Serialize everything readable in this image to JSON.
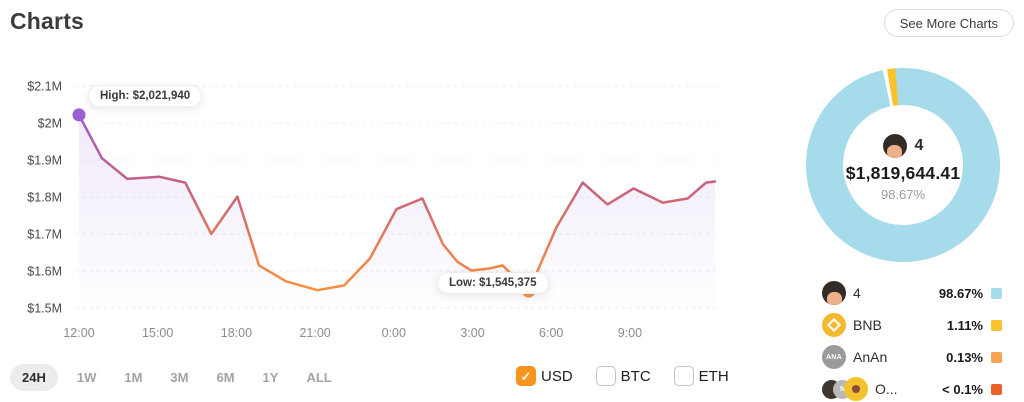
{
  "header": {
    "title": "Charts",
    "see_more_label": "See More Charts"
  },
  "tooltips": {
    "high": "High: $2,021,940",
    "low": "Low: $1,545,375"
  },
  "ranges": [
    {
      "label": "24H",
      "active": true
    },
    {
      "label": "1W",
      "active": false
    },
    {
      "label": "1M",
      "active": false
    },
    {
      "label": "3M",
      "active": false
    },
    {
      "label": "6M",
      "active": false
    },
    {
      "label": "1Y",
      "active": false
    },
    {
      "label": "ALL",
      "active": false
    }
  ],
  "currencies": [
    {
      "label": "USD",
      "checked": true
    },
    {
      "label": "BTC",
      "checked": false
    },
    {
      "label": "ETH",
      "checked": false
    }
  ],
  "donut_center": {
    "count": "4",
    "amount": "$1,819,644.41",
    "percent": "98.67%"
  },
  "legend": {
    "rows": [
      {
        "icon": "avatar-icon",
        "label": "4",
        "value": "98.67%",
        "chip_color": "#A3DCED"
      },
      {
        "icon": "bnb-icon",
        "label": "BNB",
        "value": "1.11%",
        "chip_color": "#F9C32D"
      },
      {
        "icon": "ana-icon",
        "label": "AnAn",
        "value": "0.13%",
        "chip_color": "#F6A355"
      },
      {
        "icon": "coins-icon",
        "label": "O...",
        "value": "< 0.1%",
        "chip_color": "#E8622A"
      }
    ]
  },
  "chart_data": [
    {
      "type": "line",
      "x_ticks": [
        "12:00",
        "15:00",
        "18:00",
        "21:00",
        "0:00",
        "3:00",
        "6:00",
        "9:00"
      ],
      "y_ticks": [
        "$2.1M",
        "$2M",
        "$1.9M",
        "$1.8M",
        "$1.7M",
        "$1.6M",
        "$1.5M"
      ],
      "y_range": [
        1500000,
        2100000
      ],
      "grid": true,
      "high": {
        "value": 2021940,
        "label": "High: $2,021,940",
        "dot_color": "#9B5FD6"
      },
      "low": {
        "value": 1545375,
        "label": "Low: $1,545,375",
        "dot_color": "#F8923C"
      },
      "line_gradient": [
        "#9A5CD8",
        "#C7617D",
        "#EF7F4E",
        "#F8973C"
      ],
      "area_color": "#9460D6",
      "points": [
        [
          0.0,
          2021940
        ],
        [
          0.036,
          1905000
        ],
        [
          0.076,
          1849000
        ],
        [
          0.126,
          1855000
        ],
        [
          0.167,
          1839000
        ],
        [
          0.208,
          1700000
        ],
        [
          0.249,
          1801000
        ],
        [
          0.283,
          1615000
        ],
        [
          0.326,
          1572000
        ],
        [
          0.375,
          1548000
        ],
        [
          0.417,
          1561000
        ],
        [
          0.457,
          1633000
        ],
        [
          0.499,
          1767000
        ],
        [
          0.54,
          1796000
        ],
        [
          0.572,
          1673000
        ],
        [
          0.595,
          1625000
        ],
        [
          0.617,
          1601000
        ],
        [
          0.646,
          1607000
        ],
        [
          0.666,
          1615000
        ],
        [
          0.707,
          1545375
        ],
        [
          0.751,
          1719000
        ],
        [
          0.792,
          1839000
        ],
        [
          0.831,
          1780000
        ],
        [
          0.872,
          1823000
        ],
        [
          0.918,
          1785000
        ],
        [
          0.957,
          1796000
        ],
        [
          0.986,
          1839000
        ],
        [
          1.0,
          1842000
        ]
      ]
    },
    {
      "type": "pie",
      "style": "donut",
      "legend_position": "bottom-right",
      "segments": [
        {
          "label": "4",
          "value": 98.67,
          "value_label": "98.67%",
          "color": "#A5DBEA"
        },
        {
          "label": "BNB",
          "value": 1.11,
          "value_label": "1.11%",
          "color": "#F9C32D"
        },
        {
          "label": "AnAn",
          "value": 0.13,
          "value_label": "0.13%",
          "color": "#F6A355"
        },
        {
          "label": "O...",
          "value": 0.09,
          "value_label": "< 0.1%",
          "color": "#E8622A"
        }
      ],
      "center": {
        "count": "4",
        "amount": "$1,819,644.41",
        "percent": "98.67%"
      }
    }
  ]
}
